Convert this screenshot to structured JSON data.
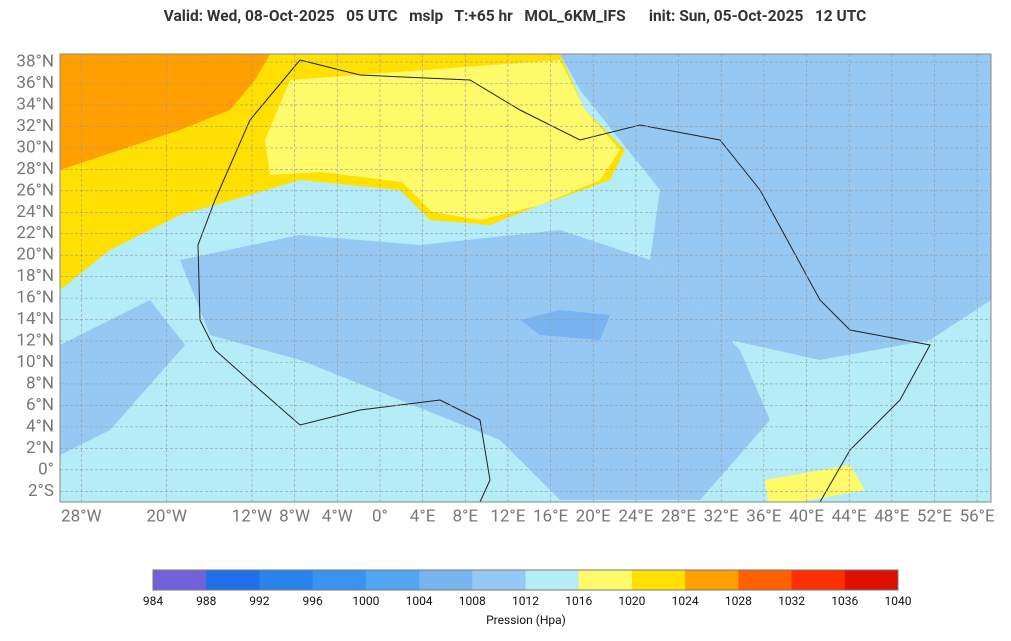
{
  "header": {
    "title": "Valid: Wed, 08-Oct-2025   05 UTC   mslp   T:+65 hr   MOL_6KM_IFS      init: Sun, 05-Oct-2025   12 UTC"
  },
  "map": {
    "lon_range": [
      -30,
      57.3
    ],
    "lat_range": [
      -3,
      38.75
    ],
    "lat_labels": [
      {
        "value": 38,
        "label": "38°N"
      },
      {
        "value": 36,
        "label": "36°N"
      },
      {
        "value": 34,
        "label": "34°N"
      },
      {
        "value": 32,
        "label": "32°N"
      },
      {
        "value": 30,
        "label": "30°N"
      },
      {
        "value": 28,
        "label": "28°N"
      },
      {
        "value": 26,
        "label": "26°N"
      },
      {
        "value": 24,
        "label": "24°N"
      },
      {
        "value": 22,
        "label": "22°N"
      },
      {
        "value": 20,
        "label": "20°N"
      },
      {
        "value": 18,
        "label": "18°N"
      },
      {
        "value": 16,
        "label": "16°N"
      },
      {
        "value": 14,
        "label": "14°N"
      },
      {
        "value": 12,
        "label": "12°N"
      },
      {
        "value": 10,
        "label": "10°N"
      },
      {
        "value": 8,
        "label": "8°N"
      },
      {
        "value": 6,
        "label": "6°N"
      },
      {
        "value": 4,
        "label": "4°N"
      },
      {
        "value": 2,
        "label": "2°N"
      },
      {
        "value": 0,
        "label": "0°"
      },
      {
        "value": -2,
        "label": "2°S"
      }
    ],
    "lon_labels": [
      {
        "value": -28,
        "label": "28°W"
      },
      {
        "value": -20,
        "label": "20°W"
      },
      {
        "value": -12,
        "label": "12°W"
      },
      {
        "value": -8,
        "label": "8°W"
      },
      {
        "value": -4,
        "label": "4°W"
      },
      {
        "value": 0,
        "label": "0°"
      },
      {
        "value": 4,
        "label": "4°E"
      },
      {
        "value": 8,
        "label": "8°E"
      },
      {
        "value": 12,
        "label": "12°E"
      },
      {
        "value": 16,
        "label": "16°E"
      },
      {
        "value": 20,
        "label": "20°E"
      },
      {
        "value": 24,
        "label": "24°E"
      },
      {
        "value": 28,
        "label": "28°E"
      },
      {
        "value": 32,
        "label": "32°E"
      },
      {
        "value": 36,
        "label": "36°E"
      },
      {
        "value": 40,
        "label": "40°E"
      },
      {
        "value": 44,
        "label": "44°E"
      },
      {
        "value": 48,
        "label": "48°E"
      },
      {
        "value": 52,
        "label": "52°E"
      },
      {
        "value": 56,
        "label": "56°E"
      }
    ]
  },
  "colorbar": {
    "ticks": [
      984,
      988,
      992,
      996,
      1000,
      1004,
      1008,
      1012,
      1016,
      1020,
      1024,
      1028,
      1032,
      1036,
      1040
    ],
    "colors": [
      "#7262d8",
      "#1e6fe8",
      "#2a82ec",
      "#3a93f0",
      "#52a5f0",
      "#78b4f0",
      "#96c8f4",
      "#b4ecf8",
      "#fffa6a",
      "#ffe000",
      "#ffa000",
      "#ff6000",
      "#ff3000",
      "#e01000"
    ],
    "label": "Pression (Hpa)"
  }
}
